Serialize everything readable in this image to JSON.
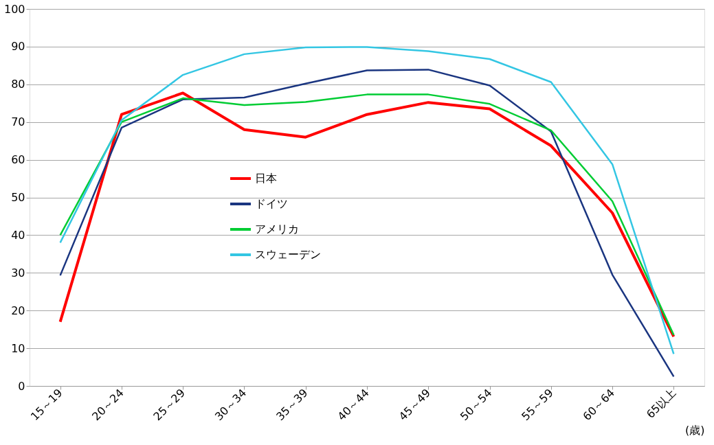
{
  "chart_data": {
    "type": "line",
    "xlabel": "(歳)",
    "categories": [
      "15～19",
      "20～24",
      "25～29",
      "30～34",
      "35～39",
      "40～44",
      "45～49",
      "50～54",
      "55～59",
      "60～64",
      "65以上"
    ],
    "series": [
      {
        "name": "日本",
        "color": "#ff0000",
        "values": [
          17,
          72,
          77.7,
          68,
          66,
          72,
          75.2,
          73.5,
          63.7,
          45.9,
          13.1
        ]
      },
      {
        "name": "ドイツ",
        "color": "#1a3580",
        "values": [
          29.3,
          68.5,
          76,
          76.5,
          80.2,
          83.7,
          83.9,
          79.7,
          67.5,
          29.5,
          2.5
        ]
      },
      {
        "name": "アメリカ",
        "color": "#00cc33",
        "values": [
          40,
          70,
          76.3,
          74.5,
          75.3,
          77.3,
          77.3,
          74.8,
          67.8,
          49,
          13.5
        ]
      },
      {
        "name": "スウェーデン",
        "color": "#33c6e3",
        "values": [
          38,
          70.5,
          82.5,
          88,
          89.8,
          89.9,
          88.8,
          86.7,
          80.6,
          58.8,
          8.5
        ]
      }
    ],
    "ylim": [
      0,
      100
    ],
    "yticks": [
      0,
      10,
      20,
      30,
      40,
      50,
      60,
      70,
      80,
      90,
      100
    ],
    "grid": "y",
    "legend": "center",
    "marker": "none",
    "line_style": "solid"
  }
}
